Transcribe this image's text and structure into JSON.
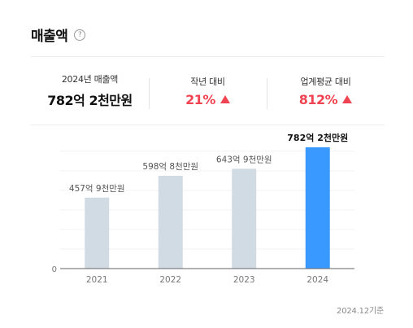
{
  "header": {
    "title": "매출액",
    "help_glyph": "?"
  },
  "stats": [
    {
      "label": "2024년 매출액",
      "value": "782억 2천만원",
      "trend": "none",
      "color": "#111111"
    },
    {
      "label": "작년 대비",
      "value": "21%",
      "trend": "up",
      "color": "#f04452"
    },
    {
      "label": "업계평균 대비",
      "value": "812%",
      "trend": "up",
      "color": "#f04452"
    }
  ],
  "chart_data": {
    "type": "bar",
    "categories": [
      "2021",
      "2022",
      "2023",
      "2024"
    ],
    "values": [
      457.9,
      598.8,
      643.9,
      782.2
    ],
    "data_labels": [
      "457억 9천만원",
      "598억 8천만원",
      "643억 9천만원",
      "782억 2천만원"
    ],
    "ylim": [
      0,
      782.2
    ],
    "y_tick_labels": [
      "0"
    ],
    "highlight_index": 3,
    "colors": {
      "bar": "#d1dbe3",
      "highlight": "#3a99ff"
    },
    "grid": true
  },
  "footnote": "2024.12기준"
}
